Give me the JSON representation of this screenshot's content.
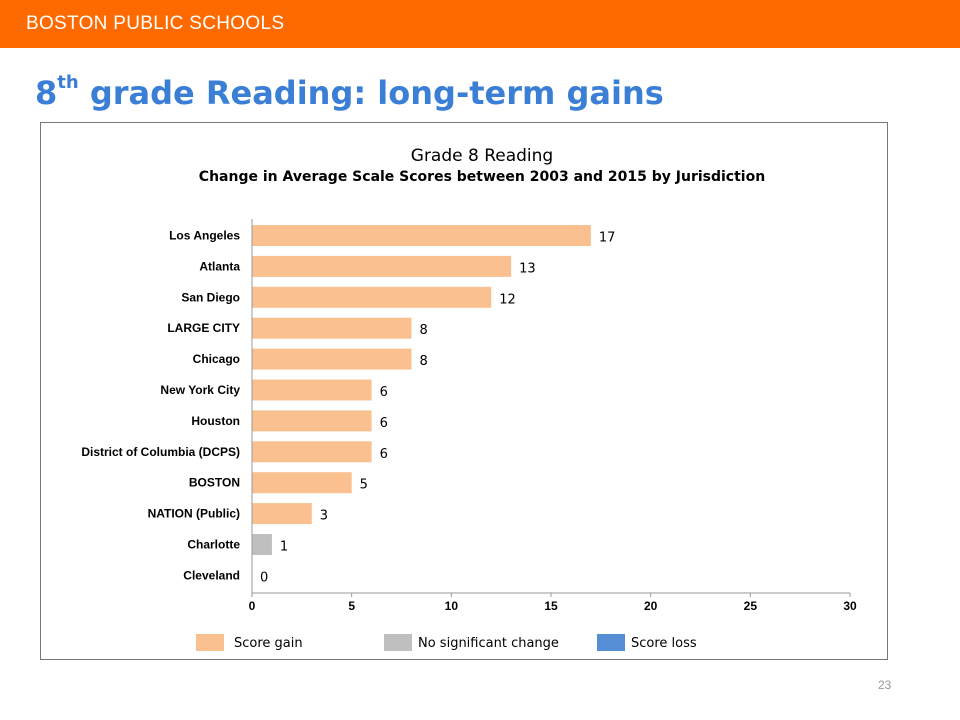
{
  "header": {
    "org_name": "BOSTON PUBLIC SCHOOLS",
    "brand_color": "#ff6a00"
  },
  "slide": {
    "title_number": "8",
    "title_sup": "th",
    "title_rest": " grade Reading: long-term gains",
    "title_color": "#3a7fd5",
    "page_number": "23"
  },
  "chart_data": {
    "type": "bar",
    "orientation": "horizontal",
    "title": "Grade 8 Reading",
    "subtitle": "Change in Average Scale Scores between 2003 and 2015 by Jurisdiction",
    "categories": [
      "Los Angeles",
      "Atlanta",
      "San Diego",
      "LARGE CITY",
      "Chicago",
      "New York City",
      "Houston",
      "District of Columbia (DCPS)",
      "BOSTON",
      "NATION (Public)",
      "Charlotte",
      "Cleveland"
    ],
    "values": [
      17,
      13,
      12,
      8,
      8,
      6,
      6,
      6,
      5,
      3,
      1,
      0
    ],
    "bar_status": [
      "gain",
      "gain",
      "gain",
      "gain",
      "gain",
      "gain",
      "gain",
      "gain",
      "gain",
      "gain",
      "no_change",
      "no_change"
    ],
    "xlim": [
      0,
      30
    ],
    "xticks": [
      0,
      5,
      10,
      15,
      20,
      25,
      30
    ],
    "grid": false,
    "legend_position": "bottom",
    "legend": [
      {
        "key": "gain",
        "label": "Score gain",
        "color": "#fac090"
      },
      {
        "key": "no_change",
        "label": "No significant change",
        "color": "#bfbfbf"
      },
      {
        "key": "loss",
        "label": "Score loss",
        "color": "#558ed5"
      }
    ]
  }
}
